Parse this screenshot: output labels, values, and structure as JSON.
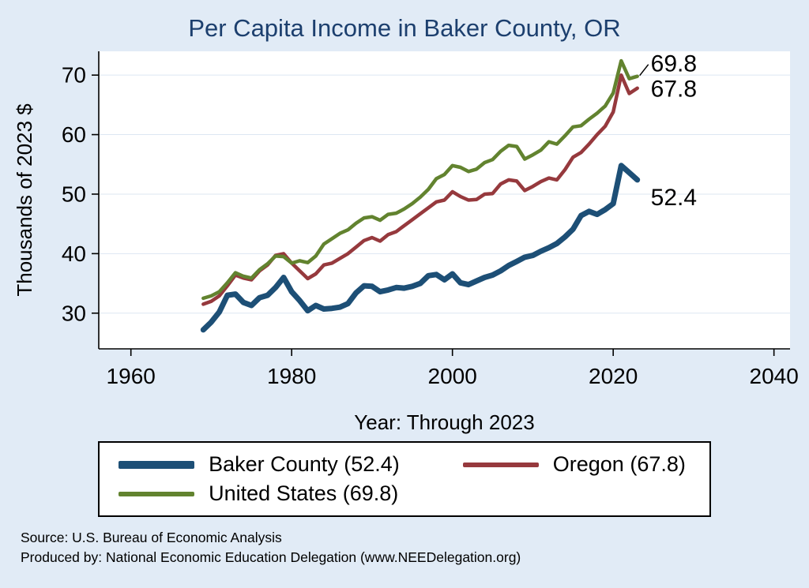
{
  "title": "Per Capita Income in Baker County, OR",
  "y_axis": {
    "label": "Thousands of 2023 $"
  },
  "x_axis": {
    "label": "Year: Through 2023"
  },
  "end_labels": [
    {
      "text": "69.8",
      "series": "United States"
    },
    {
      "text": "67.8",
      "series": "Oregon"
    },
    {
      "text": "52.4",
      "series": "Baker County"
    }
  ],
  "legend": {
    "items": [
      {
        "label": "Baker County (52.4)",
        "color": "#1d4f76",
        "thickness": 10
      },
      {
        "label": "Oregon (67.8)",
        "color": "#96393d",
        "thickness": 6
      },
      {
        "label": "United States (69.8)",
        "color": "#62832f",
        "thickness": 6
      }
    ]
  },
  "footer": {
    "source": "Source: U.S. Bureau of Economic Analysis",
    "produced_by": "Produced by: National Economic Education Delegation (www.NEEDelegation.org)"
  },
  "colors": {
    "background": "#e1ebf6",
    "plot_background": "#ffffff",
    "title": "#1c3f6e",
    "axis": "#000000",
    "gridline": "#dde7f2",
    "baker_county": "#1d4f76",
    "oregon": "#96393d",
    "united_states": "#62832f"
  },
  "chart_data": {
    "type": "line",
    "title": "Per Capita Income in Baker County, OR",
    "xlabel": "Year: Through 2023",
    "ylabel": "Thousands of 2023 $",
    "xlim": [
      1956,
      2042
    ],
    "ylim": [
      24,
      74
    ],
    "x_ticks": [
      1960,
      1980,
      2000,
      2020,
      2040
    ],
    "y_ticks": [
      30,
      40,
      50,
      60,
      70
    ],
    "grid": "horizontal-faint",
    "legend_position": "bottom",
    "x": [
      1969,
      1970,
      1971,
      1972,
      1973,
      1974,
      1975,
      1976,
      1977,
      1978,
      1979,
      1980,
      1981,
      1982,
      1983,
      1984,
      1985,
      1986,
      1987,
      1988,
      1989,
      1990,
      1991,
      1992,
      1993,
      1994,
      1995,
      1996,
      1997,
      1998,
      1999,
      2000,
      2001,
      2002,
      2003,
      2004,
      2005,
      2006,
      2007,
      2008,
      2009,
      2010,
      2011,
      2012,
      2013,
      2014,
      2015,
      2016,
      2017,
      2018,
      2019,
      2020,
      2021,
      2022,
      2023
    ],
    "series": [
      {
        "name": "Baker County",
        "color": "#1d4f76",
        "line_width": 7,
        "values": [
          27.2,
          28.5,
          30.2,
          33.0,
          33.2,
          31.8,
          31.3,
          32.6,
          33.0,
          34.3,
          36.0,
          33.6,
          32.1,
          30.4,
          31.3,
          30.7,
          30.8,
          31.0,
          31.6,
          33.4,
          34.6,
          34.5,
          33.6,
          33.9,
          34.3,
          34.2,
          34.5,
          35.0,
          36.3,
          36.5,
          35.6,
          36.6,
          35.1,
          34.8,
          35.4,
          36.0,
          36.4,
          37.1,
          38.0,
          38.7,
          39.4,
          39.7,
          40.4,
          41.0,
          41.7,
          42.8,
          44.1,
          46.4,
          47.1,
          46.6,
          47.4,
          48.4,
          54.8,
          53.6,
          52.4
        ]
      },
      {
        "name": "Oregon",
        "color": "#96393d",
        "line_width": 4.5,
        "values": [
          31.5,
          32.0,
          32.9,
          34.6,
          36.4,
          35.9,
          35.6,
          37.1,
          38.1,
          39.7,
          40.0,
          38.4,
          37.1,
          35.8,
          36.6,
          38.1,
          38.4,
          39.2,
          40.0,
          41.1,
          42.2,
          42.7,
          42.1,
          43.2,
          43.7,
          44.7,
          45.7,
          46.7,
          47.7,
          48.7,
          49.0,
          50.4,
          49.6,
          49.0,
          49.1,
          50.0,
          50.1,
          51.7,
          52.4,
          52.2,
          50.6,
          51.3,
          52.1,
          52.7,
          52.4,
          54.1,
          56.2,
          57.0,
          58.4,
          60.0,
          61.4,
          63.8,
          70.0,
          66.9,
          67.8
        ]
      },
      {
        "name": "United States",
        "color": "#62832f",
        "line_width": 4.5,
        "values": [
          32.5,
          32.9,
          33.6,
          35.1,
          36.8,
          36.2,
          35.9,
          37.3,
          38.3,
          39.6,
          39.5,
          38.4,
          38.8,
          38.5,
          39.6,
          41.6,
          42.5,
          43.4,
          44.0,
          45.1,
          46.0,
          46.2,
          45.6,
          46.6,
          46.8,
          47.5,
          48.4,
          49.5,
          50.8,
          52.6,
          53.3,
          54.8,
          54.5,
          53.8,
          54.2,
          55.3,
          55.8,
          57.2,
          58.2,
          58.0,
          55.9,
          56.6,
          57.4,
          58.8,
          58.4,
          59.8,
          61.3,
          61.5,
          62.6,
          63.6,
          64.8,
          67.0,
          72.4,
          69.4,
          69.8
        ]
      }
    ]
  }
}
